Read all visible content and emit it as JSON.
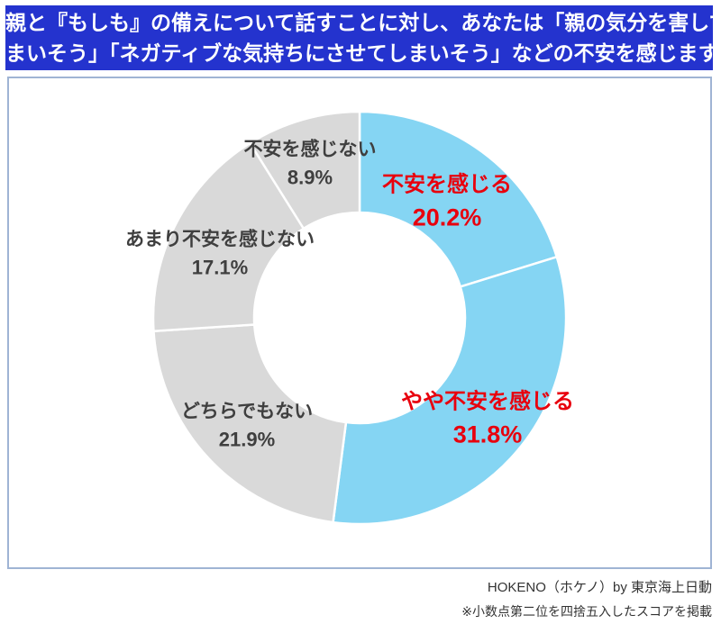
{
  "header": {
    "line1": "親と『もしも』の備えについて話すことに対し、あなたは「親の気分を害してし",
    "line2": "まいそう」「ネガティブな気持ちにさせてしまいそう」などの不安を感じますか",
    "bg_color": "#2433CE",
    "text_color": "#FFFFFF"
  },
  "chart_data": {
    "type": "pie",
    "subtype": "donut",
    "title": "親と『もしも』の備えについて話すことに対し、あなたは「親の気分を害してしまいそう」「ネガティブな気持ちにさせてしまいそう」などの不安を感じますか",
    "unit": "%",
    "direction": "clockwise",
    "start_angle_deg": 0,
    "legend": "none",
    "segments": [
      {
        "id": "fuan-kanjiru",
        "label": "不安を感じる",
        "value": 20.2,
        "pct_label": "20.2%",
        "color": "#85D5F3",
        "label_color": "#E8000D"
      },
      {
        "id": "yaya-fuan-kanjiru",
        "label": "やや不安を感じる",
        "value": 31.8,
        "pct_label": "31.8%",
        "color": "#85D5F3",
        "label_color": "#E8000D"
      },
      {
        "id": "dochira-demo-nai",
        "label": "どちらでもない",
        "value": 21.9,
        "pct_label": "21.9%",
        "color": "#D9D9D9",
        "label_color": "#3F3F3F"
      },
      {
        "id": "amari-fuan-kanjinai",
        "label": "あまり不安を感じない",
        "value": 17.1,
        "pct_label": "17.1%",
        "color": "#D9D9D9",
        "label_color": "#3F3F3F"
      },
      {
        "id": "fuan-kanjinai",
        "label": "不安を感じない",
        "value": 8.9,
        "pct_label": "8.9%",
        "color": "#D9D9D9",
        "label_color": "#3F3F3F"
      }
    ]
  },
  "footer": {
    "credit": "HOKENO（ホケノ）by 東京海上日動",
    "note": "※小数点第二位を四捨五入したスコアを掲載"
  }
}
